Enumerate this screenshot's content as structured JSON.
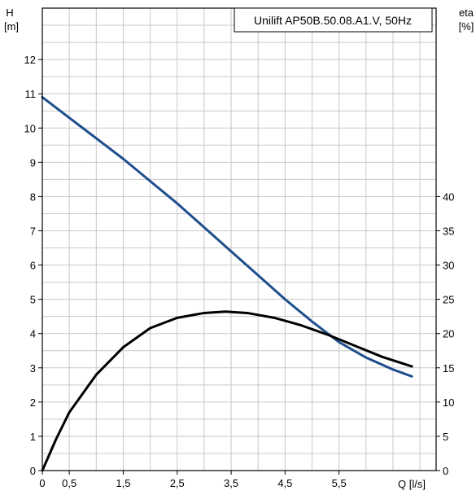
{
  "chart_data": {
    "type": "line",
    "title": "Unilift AP50B.50.08.A1.V, 50Hz",
    "y_left_label": {
      "line1": "H",
      "line2": "[m]"
    },
    "y_right_label": {
      "line1": "eta",
      "line2": "[%]"
    },
    "xlabel": "Q [l/s]",
    "xlim": [
      0,
      7.3
    ],
    "ylim_left": [
      0,
      13.5
    ],
    "ylim_right": [
      0,
      67.5
    ],
    "grid": true,
    "x_ticks": [
      "0",
      "0,5",
      "1,5",
      "2,5",
      "3,5",
      "4,5",
      "5,5"
    ],
    "x_tick_values": [
      0,
      0.5,
      1.5,
      2.5,
      3.5,
      4.5,
      5.5
    ],
    "y_left_ticks": [
      0,
      1,
      2,
      3,
      4,
      5,
      6,
      7,
      8,
      9,
      10,
      11,
      12
    ],
    "y_right_ticks": [
      0,
      5,
      10,
      15,
      20,
      25,
      30,
      35,
      40
    ],
    "series": [
      {
        "axis": "left",
        "color": "#1f4e8c",
        "x": [
          0,
          0.5,
          1.0,
          1.5,
          2.0,
          2.5,
          3.0,
          3.5,
          4.0,
          4.5,
          5.0,
          5.5,
          6.0,
          6.5,
          6.85
        ],
        "y": [
          10.9,
          10.3,
          9.7,
          9.1,
          8.45,
          7.8,
          7.1,
          6.4,
          5.7,
          5.0,
          4.35,
          3.75,
          3.3,
          2.95,
          2.75
        ]
      },
      {
        "axis": "right",
        "color": "#000000",
        "x": [
          0,
          0.25,
          0.5,
          1.0,
          1.5,
          2.0,
          2.5,
          3.0,
          3.4,
          3.8,
          4.3,
          4.8,
          5.3,
          5.8,
          6.3,
          6.85
        ],
        "y": [
          0,
          4.5,
          8.5,
          14.0,
          18.0,
          20.8,
          22.3,
          23.0,
          23.2,
          23.0,
          22.3,
          21.2,
          19.8,
          18.2,
          16.6,
          15.2
        ]
      }
    ]
  }
}
